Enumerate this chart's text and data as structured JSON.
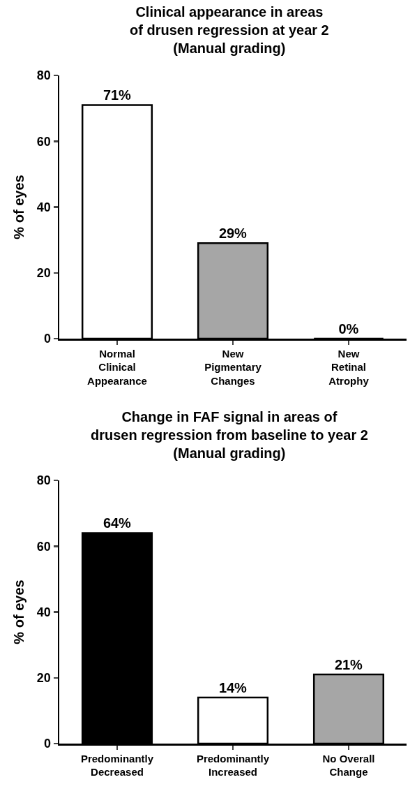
{
  "chart_data": [
    {
      "type": "bar",
      "title": "Clinical appearance in areas\nof drusen regression at year 2\n(Manual grading)",
      "ylabel": "% of eyes",
      "categories": [
        "Normal\nClinical\nAppearance",
        "New\nPigmentary\nChanges",
        "New\nRetinal\nAtrophy"
      ],
      "values": [
        71,
        29,
        0
      ],
      "colors": [
        "#ffffff",
        "#a6a6a6",
        "#ffffff"
      ],
      "value_labels": [
        "71%",
        "29%",
        "0%"
      ],
      "ylim": [
        0,
        80
      ],
      "yticks": [
        0,
        20,
        40,
        60,
        80
      ]
    },
    {
      "type": "bar",
      "title": "Change in FAF signal in areas of\ndrusen regression from baseline to year 2\n(Manual grading)",
      "ylabel": "% of eyes",
      "categories": [
        "Predominantly\nDecreased",
        "Predominantly\nIncreased",
        "No Overall\nChange"
      ],
      "values": [
        64,
        14,
        21
      ],
      "colors": [
        "#000000",
        "#ffffff",
        "#a6a6a6"
      ],
      "value_labels": [
        "64%",
        "14%",
        "21%"
      ],
      "ylim": [
        0,
        80
      ],
      "yticks": [
        0,
        20,
        40,
        60,
        80
      ]
    }
  ]
}
